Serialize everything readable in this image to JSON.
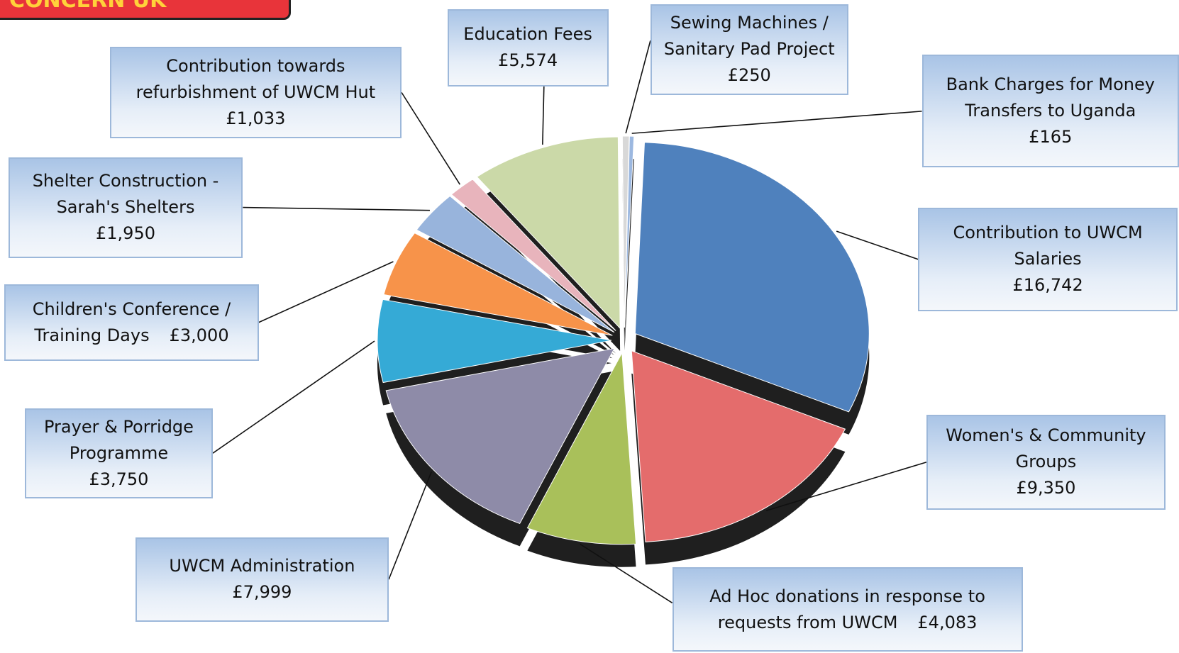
{
  "header": "CONCERN UK",
  "chart_data": {
    "type": "pie",
    "categories": [
      "Contribution to UWCM Salaries",
      "Women's & Community Groups",
      "Ad Hoc donations in response to requests from UWCM",
      "UWCM Administration",
      "Prayer & Porridge Programme",
      "Children's Conference / Training Days",
      "Shelter Construction - Sarah's Shelters",
      "Contribution towards refurbishment of UWCM Hut",
      "Education Fees",
      "Sewing Machines / Sanitary Pad Project",
      "Bank Charges for Money Transfers to Uganda"
    ],
    "values": [
      16742,
      9350,
      4083,
      7999,
      3750,
      3000,
      1950,
      1033,
      5574,
      250,
      165
    ],
    "value_labels": [
      "£16,742",
      "£9,350",
      "£4,083",
      "£7,999",
      "£3,750",
      "£3,000",
      "£1,950",
      "£1,033",
      "£5,574",
      "£250",
      "£165"
    ],
    "colors": [
      "#4f81bd",
      "#e46c6c",
      "#a9c05a",
      "#8e8ba8",
      "#35aad6",
      "#f7934a",
      "#98b4dc",
      "#e8b4bc",
      "#cbd9a8",
      "#d8d8d8",
      "#9cb8e0"
    ]
  }
}
